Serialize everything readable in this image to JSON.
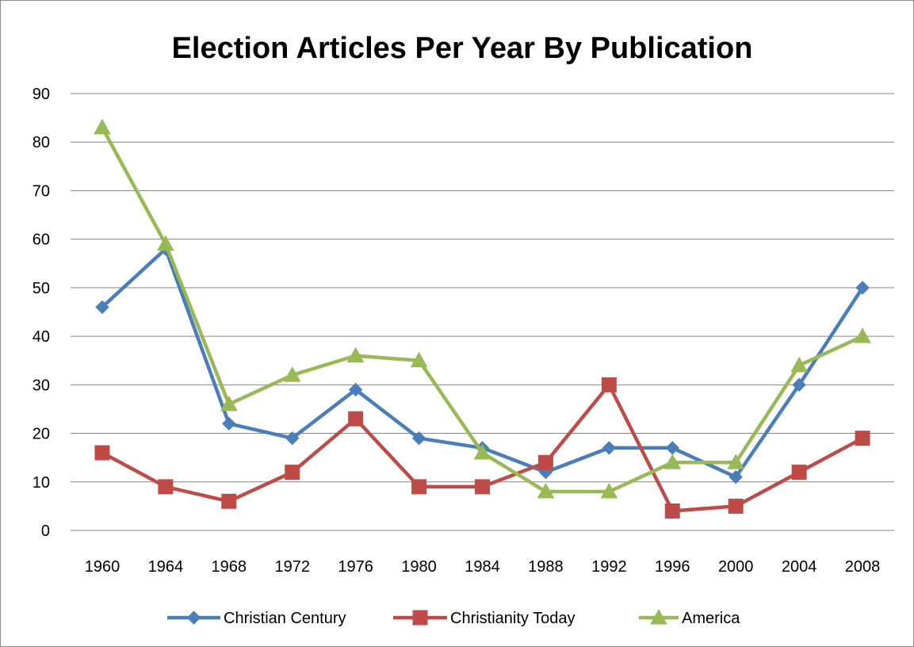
{
  "chart_data": {
    "type": "line",
    "title": "Election Articles Per Year By Publication",
    "xlabel": "",
    "ylabel": "",
    "categories": [
      "1960",
      "1964",
      "1968",
      "1972",
      "1976",
      "1980",
      "1984",
      "1988",
      "1992",
      "1996",
      "2000",
      "2004",
      "2008"
    ],
    "ylim": [
      0,
      90
    ],
    "yticks": [
      0,
      10,
      20,
      30,
      40,
      50,
      60,
      70,
      80,
      90
    ],
    "grid": true,
    "legend_position": "bottom",
    "series": [
      {
        "name": "Christian Century",
        "color": "#4a7ebb",
        "marker": "diamond",
        "values": [
          46,
          58,
          22,
          19,
          29,
          19,
          17,
          12,
          17,
          17,
          11,
          30,
          50
        ]
      },
      {
        "name": "Christianity Today",
        "color": "#be4b48",
        "marker": "square",
        "values": [
          16,
          9,
          6,
          12,
          23,
          9,
          9,
          14,
          30,
          4,
          5,
          12,
          19
        ]
      },
      {
        "name": "America",
        "color": "#98b954",
        "marker": "triangle",
        "values": [
          83,
          59,
          26,
          32,
          36,
          35,
          16,
          8,
          8,
          14,
          14,
          34,
          40
        ]
      }
    ]
  }
}
